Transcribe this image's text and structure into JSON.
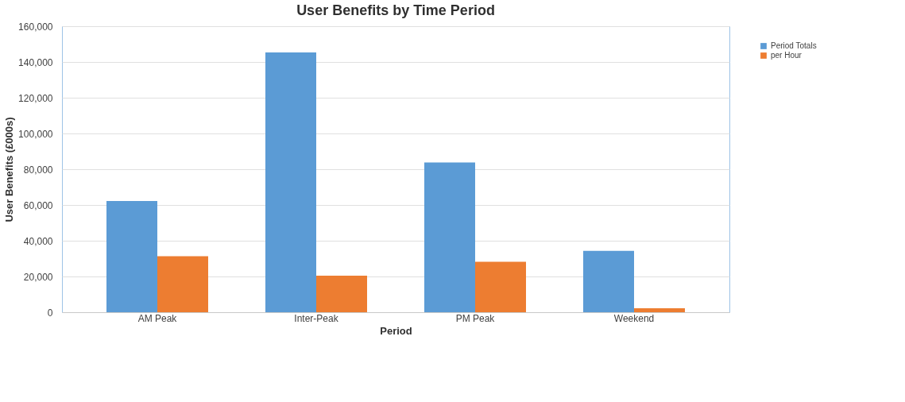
{
  "chart_data": {
    "type": "bar",
    "title": "User Benefits by Time Period",
    "xlabel": "Period",
    "ylabel": "User Benefits (£000s)",
    "categories": [
      "AM Peak",
      "Inter-Peak",
      "PM Peak",
      "Weekend"
    ],
    "series": [
      {
        "name": "Period Totals",
        "color": "#5b9bd5",
        "values": [
          62200,
          145300,
          83800,
          34300
        ]
      },
      {
        "name": "per Hour",
        "color": "#ed7d31",
        "values": [
          31300,
          20400,
          28200,
          2200
        ]
      }
    ],
    "ylim": [
      0,
      160000
    ],
    "yticks": [
      0,
      {
        "value": 20000,
        "label": "20,000"
      },
      {
        "value": 40000,
        "label": "40,000"
      },
      {
        "value": 60000,
        "label": "60,000"
      },
      {
        "value": 80000,
        "label": "80,000"
      },
      {
        "value": 100000,
        "label": "100,000"
      },
      {
        "value": 120000,
        "label": "120,000"
      },
      {
        "value": 140000,
        "label": "140,000"
      },
      {
        "value": 160000,
        "label": "160,000"
      }
    ],
    "grid": "y",
    "legend": "right"
  }
}
